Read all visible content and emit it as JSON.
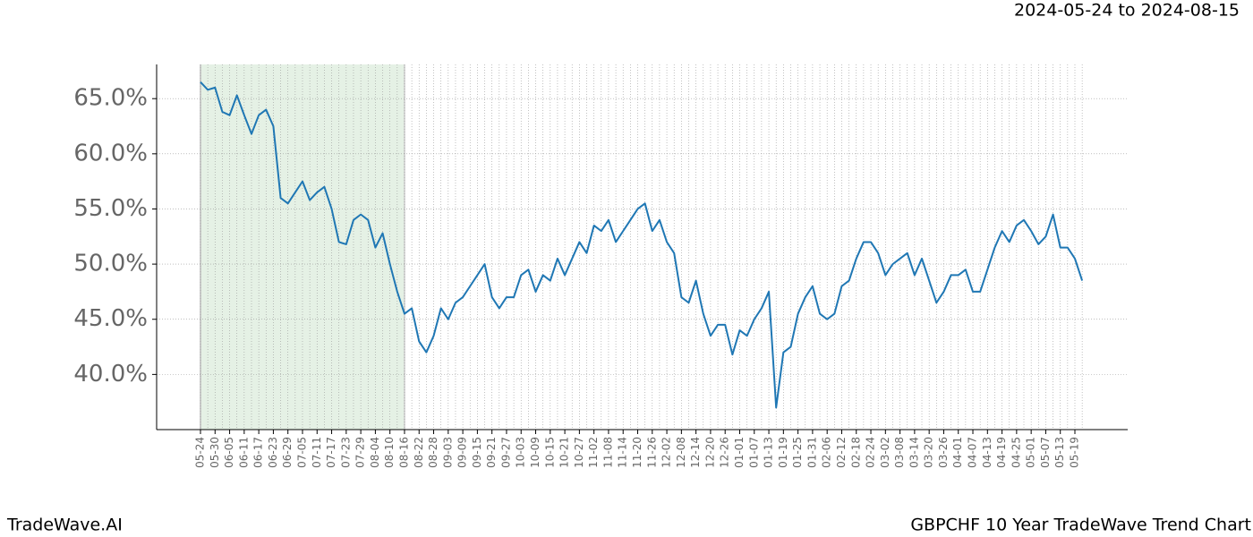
{
  "chart_data": {
    "type": "line",
    "title": "2024-05-24 to 2024-08-15",
    "footer_left": "TradeWave.AI",
    "footer_right": "GBPCHF 10 Year TradeWave Trend Chart",
    "categories": [
      "05-24",
      null,
      "05-30",
      null,
      "06-05",
      null,
      "06-11",
      null,
      "06-17",
      null,
      "06-23",
      null,
      "06-29",
      null,
      "07-05",
      null,
      "07-11",
      null,
      "07-17",
      null,
      "07-23",
      null,
      "07-29",
      null,
      "08-04",
      null,
      "08-10",
      null,
      "08-16",
      null,
      "08-22",
      null,
      "08-28",
      null,
      "09-03",
      null,
      "09-09",
      null,
      "09-15",
      null,
      "09-21",
      null,
      "09-27",
      null,
      "10-03",
      null,
      "10-09",
      null,
      "10-15",
      null,
      "10-21",
      null,
      "10-27",
      null,
      "11-02",
      null,
      "11-08",
      null,
      "11-14",
      null,
      "11-20",
      null,
      "11-26",
      null,
      "12-02",
      null,
      "12-08",
      null,
      "12-14",
      null,
      "12-20",
      null,
      "12-26",
      null,
      "01-01",
      null,
      "01-07",
      null,
      "01-13",
      null,
      "01-19",
      null,
      "01-25",
      null,
      "01-31",
      null,
      "02-06",
      null,
      "02-12",
      null,
      "02-18",
      null,
      "02-24",
      null,
      "03-02",
      null,
      "03-08",
      null,
      "03-14",
      null,
      "03-20",
      null,
      "03-26",
      null,
      "04-01",
      null,
      "04-07",
      null,
      "04-13",
      null,
      "04-19",
      null,
      "04-25",
      null,
      "05-01",
      null,
      "05-07",
      null,
      "05-13",
      null,
      "05-19",
      null
    ],
    "series": [
      {
        "color": "#1f77b4",
        "values": [
          66.5,
          65.8,
          66.0,
          63.8,
          63.5,
          65.3,
          63.5,
          61.8,
          63.5,
          64.0,
          62.5,
          56.0,
          55.5,
          56.5,
          57.5,
          55.8,
          56.5,
          57.0,
          55.0,
          52.0,
          51.8,
          54.0,
          54.5,
          54.0,
          51.5,
          52.8,
          50.0,
          47.5,
          45.5,
          46.0,
          43.0,
          42.0,
          43.5,
          46.0,
          45.0,
          46.5,
          47.0,
          48.0,
          49.0,
          50.0,
          47.0,
          46.0,
          47.0,
          47.0,
          49.0,
          49.5,
          47.5,
          49.0,
          48.5,
          50.5,
          49.0,
          50.5,
          52.0,
          51.0,
          53.5,
          53.0,
          54.0,
          52.0,
          53.0,
          54.0,
          55.0,
          55.5,
          53.0,
          54.0,
          52.0,
          51.0,
          47.0,
          46.5,
          48.5,
          45.5,
          43.5,
          44.5,
          44.5,
          41.8,
          44.0,
          43.5,
          45.0,
          46.0,
          47.5,
          37.0,
          42.0,
          42.5,
          45.5,
          47.0,
          48.0,
          45.5,
          45.0,
          45.5,
          48.0,
          48.5,
          50.5,
          52.0,
          52.0,
          51.0,
          49.0,
          50.0,
          50.5,
          51.0,
          49.0,
          50.5,
          48.5,
          46.5,
          47.5,
          49.0,
          49.0,
          49.5,
          47.5,
          47.5,
          49.5,
          51.5,
          53.0,
          52.0,
          53.5,
          54.0,
          53.0,
          51.8,
          52.5,
          54.5,
          51.5,
          51.5,
          50.5,
          48.5
        ]
      }
    ],
    "ylim": [
      35,
      68.1
    ],
    "yticks": [
      {
        "value": 40,
        "label": "40.0%"
      },
      {
        "value": 45,
        "label": "45.0%"
      },
      {
        "value": 50,
        "label": "50.0%"
      },
      {
        "value": 55,
        "label": "55.0%"
      },
      {
        "value": 60,
        "label": "60.0%"
      },
      {
        "value": 65,
        "label": "65.0%"
      }
    ],
    "shade": {
      "from": "05-24",
      "to": "08-16",
      "color": "#e5f1e5"
    },
    "grid": true
  }
}
